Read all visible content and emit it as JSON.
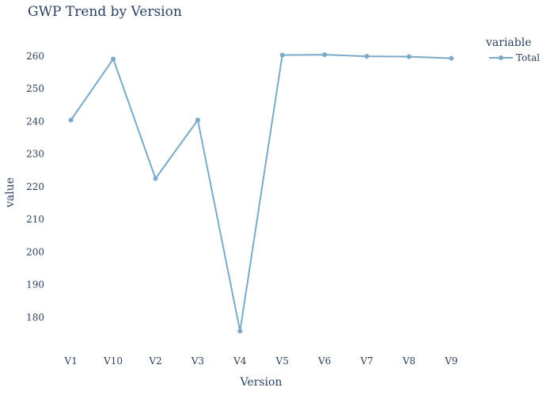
{
  "chart_data": {
    "type": "line",
    "title": "GWP Trend by Version",
    "xlabel": "Version",
    "ylabel": "value",
    "categories": [
      "V1",
      "V10",
      "V2",
      "V3",
      "V4",
      "V5",
      "V6",
      "V7",
      "V8",
      "V9"
    ],
    "series": [
      {
        "name": "Total",
        "values": [
          240.4,
          259.1,
          222.5,
          240.4,
          175.8,
          260.3,
          260.4,
          259.9,
          259.8,
          259.3
        ],
        "color": "#7aa9c9"
      }
    ],
    "ylim": [
      171,
      266
    ],
    "yticks": [
      180,
      190,
      200,
      210,
      220,
      230,
      240,
      250,
      260
    ],
    "grid": false,
    "legend": {
      "title": "variable",
      "position": "top-right"
    }
  }
}
